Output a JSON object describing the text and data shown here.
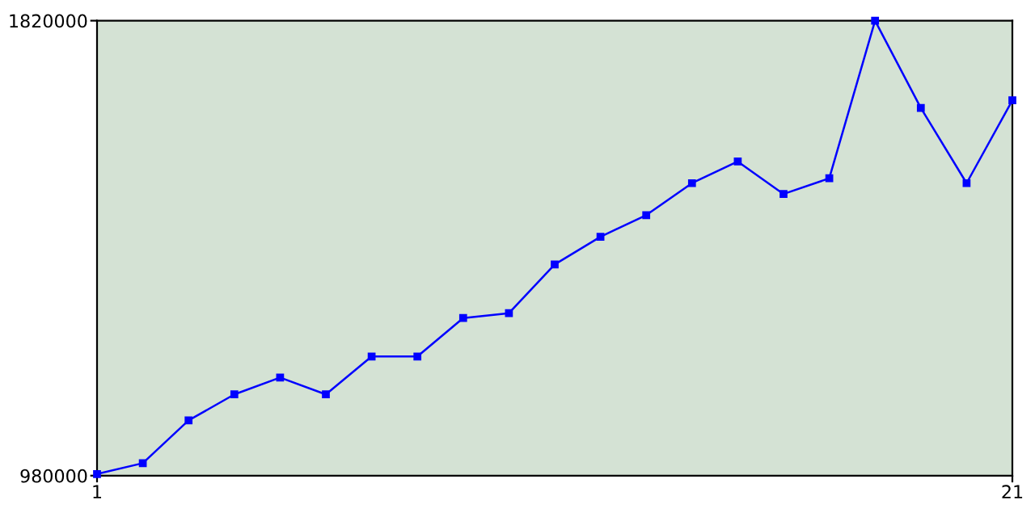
{
  "chart_data": {
    "type": "line",
    "x": [
      1,
      2,
      3,
      4,
      5,
      6,
      7,
      8,
      9,
      10,
      11,
      12,
      13,
      14,
      15,
      16,
      17,
      18,
      19,
      20,
      21
    ],
    "series": [
      {
        "color": "#0000ff",
        "values": [
          983000,
          1003000,
          1082000,
          1130000,
          1161000,
          1130000,
          1200000,
          1200000,
          1271000,
          1280000,
          1370000,
          1421000,
          1461000,
          1520000,
          1560000,
          1500000,
          1529000,
          1820000,
          1659000,
          1520000,
          1673000
        ]
      }
    ],
    "xlim": [
      1,
      21
    ],
    "xticks": [
      1,
      21
    ],
    "ylim": [
      980000,
      1820000
    ],
    "yticks": [
      980000,
      1820000
    ],
    "grid": false,
    "legend": false,
    "marker": "square",
    "line_style": "solid"
  }
}
